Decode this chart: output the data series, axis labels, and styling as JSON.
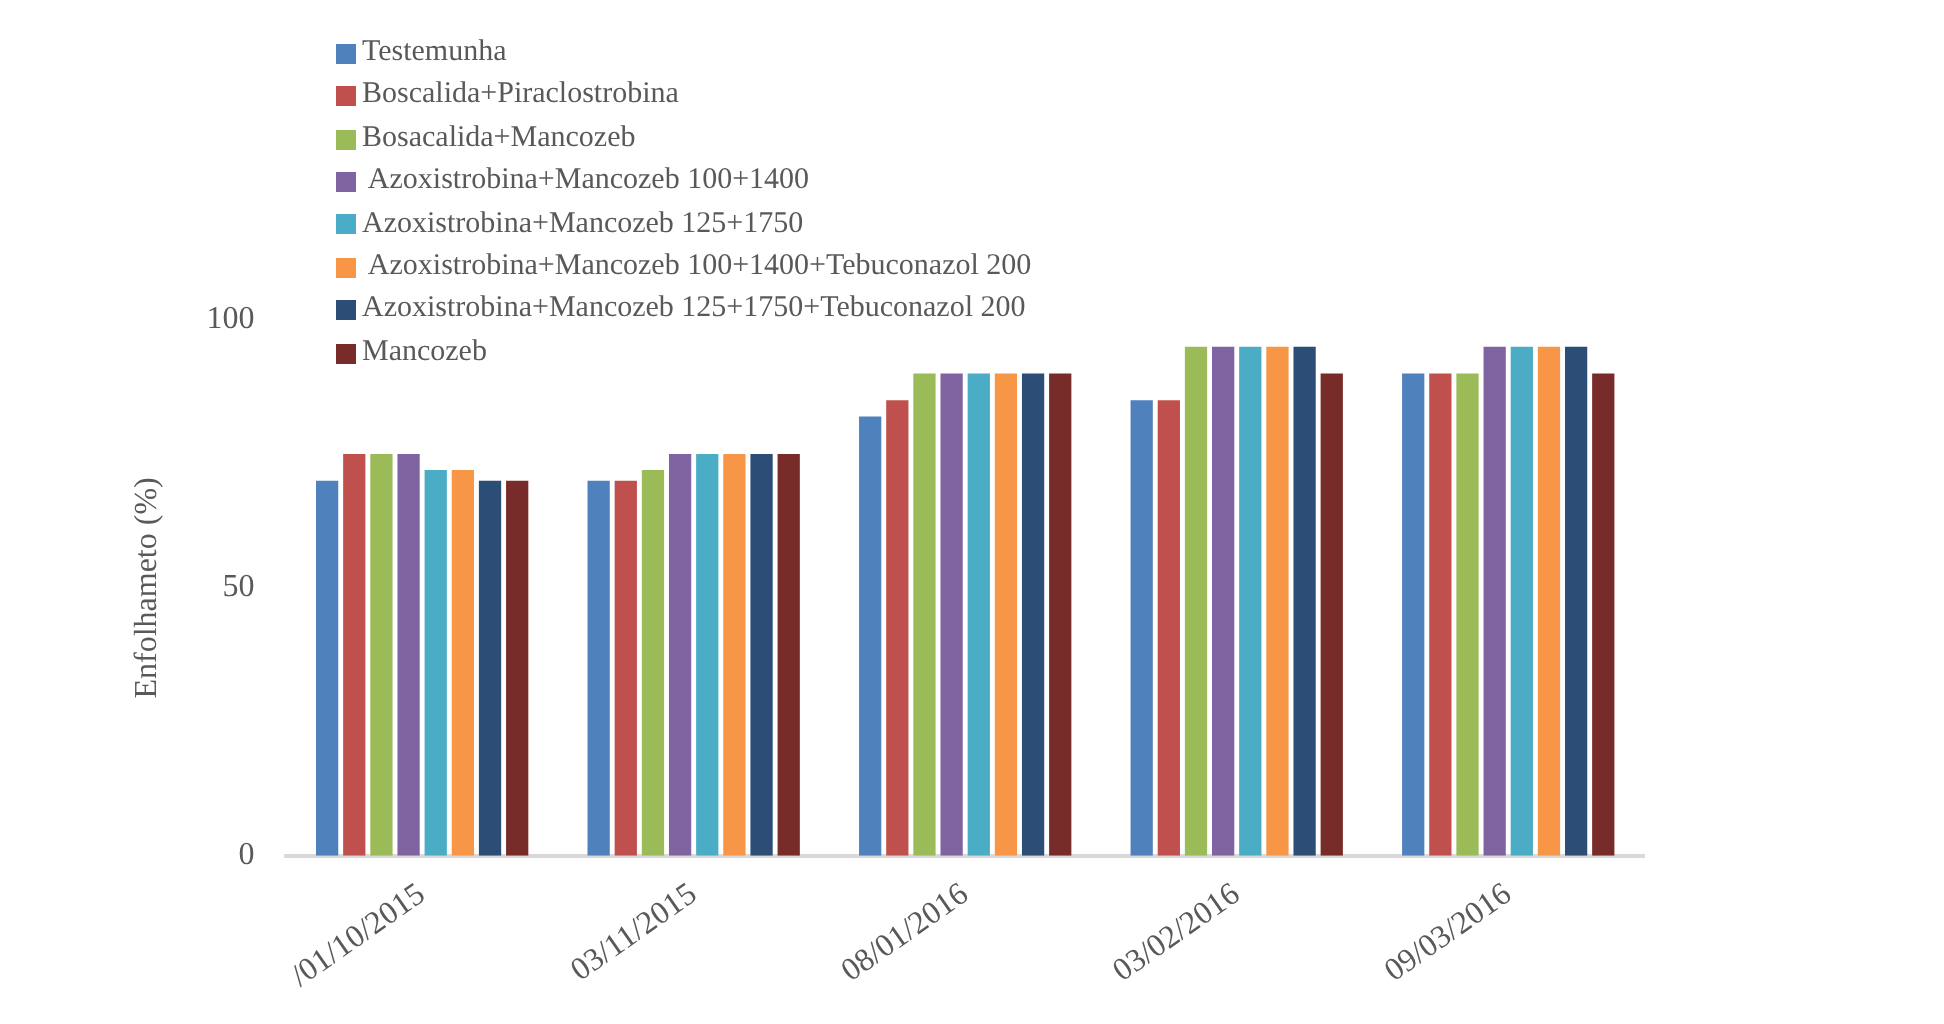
{
  "chart_data": {
    "type": "bar",
    "ylabel": "Enfolhameto (%)",
    "categories": [
      "/01/10/2015",
      "03/11/2015",
      "08/01/2016",
      "03/02/2016",
      "09/03/2016"
    ],
    "ylim": [
      0,
      100
    ],
    "yticks": [
      0,
      50,
      100
    ],
    "grid": false,
    "legend": "top left",
    "series": [
      {
        "name": "Testemunha",
        "color": "#4f81bd",
        "values": [
          70,
          70,
          82,
          85,
          90
        ]
      },
      {
        "name": "Boscalida+Piraclostrobina",
        "color": "#c0504d",
        "values": [
          75,
          70,
          85,
          85,
          90
        ]
      },
      {
        "name": "Bosacalida+Mancozeb",
        "color": "#9bbb59",
        "values": [
          75,
          72,
          90,
          95,
          90
        ]
      },
      {
        "name": " Azoxistrobina+Mancozeb 100+1400",
        "color": "#8064a2",
        "values": [
          75,
          75,
          90,
          95,
          95
        ]
      },
      {
        "name": "Azoxistrobina+Mancozeb 125+1750",
        "color": "#4bacc6",
        "values": [
          72,
          75,
          90,
          95,
          95
        ]
      },
      {
        "name": " Azoxistrobina+Mancozeb 100+1400+Tebuconazol 200",
        "color": "#f79646",
        "values": [
          72,
          75,
          90,
          95,
          95
        ]
      },
      {
        "name": "Azoxistrobina+Mancozeb 125+1750+Tebuconazol 200",
        "color": "#2c4d75",
        "values": [
          70,
          75,
          90,
          95,
          95
        ]
      },
      {
        "name": "Mancozeb",
        "color": "#772c2a",
        "values": [
          70,
          75,
          90,
          90,
          90
        ]
      }
    ]
  }
}
